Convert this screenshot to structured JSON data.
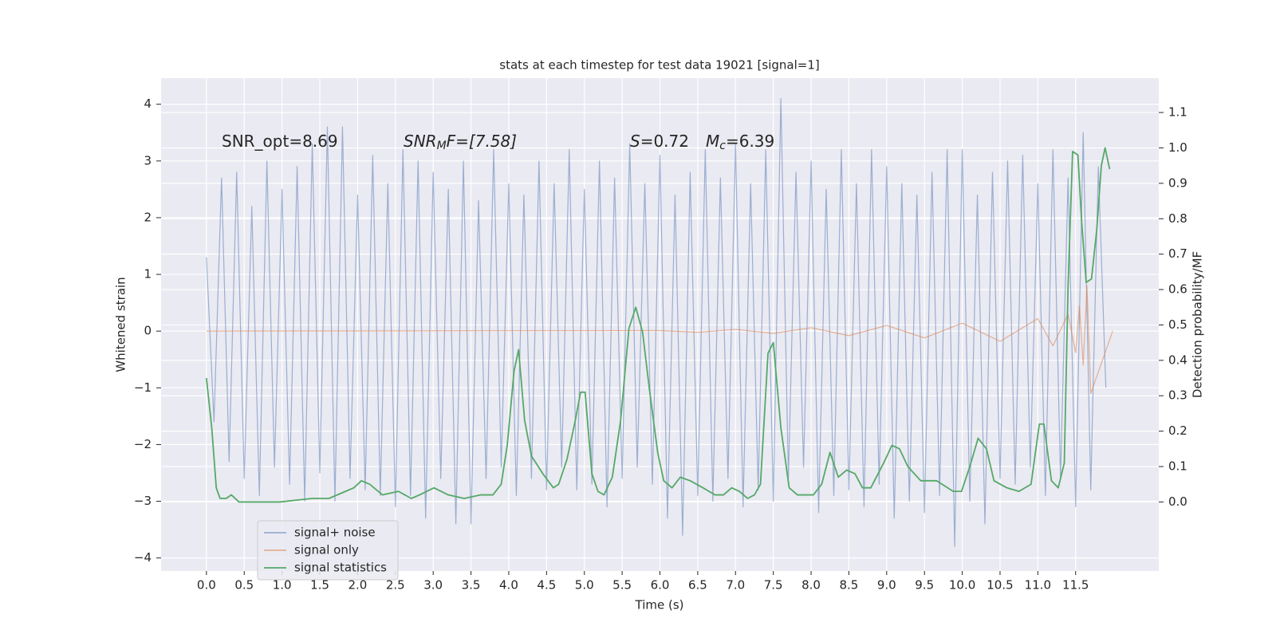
{
  "chart_data": {
    "type": "line",
    "title": "stats at each timestep for test data 19021 [signal=1]",
    "xlabel": "Time (s)",
    "ylabel": "Whitened strain",
    "y2label": "Detection probability/MF",
    "annotations": [
      {
        "base": "SNR_opt=8.69"
      },
      {
        "base": "SNR",
        "sub": "M",
        "rest": "F=[7.58]"
      },
      {
        "base": "S",
        "rest": "=0.72"
      },
      {
        "base": "M",
        "sub": "c",
        "rest": "=6.39"
      }
    ],
    "xlim": [
      -0.6,
      12.6
    ],
    "ylim": [
      -4.23,
      4.46
    ],
    "y2lim": [
      -0.195,
      1.197
    ],
    "xticks": [
      {
        "value": 0,
        "label": "0.0"
      },
      0.5,
      {
        "value": 1,
        "label": "1.0"
      },
      1.5,
      {
        "value": 2,
        "label": "2.0"
      },
      2.5,
      {
        "value": 3,
        "label": "3.0"
      },
      3.5,
      {
        "value": 4,
        "label": "4.0"
      },
      4.5,
      {
        "value": 5,
        "label": "5.0"
      },
      5.5,
      {
        "value": 6,
        "label": "6.0"
      },
      6.5,
      {
        "value": 7,
        "label": "7.0"
      },
      7.5,
      {
        "value": 8,
        "label": "8.0"
      },
      8.5,
      {
        "value": 9,
        "label": "9.0"
      },
      9.5,
      {
        "value": 10,
        "label": "10.0"
      },
      10.5,
      {
        "value": 11,
        "label": "11.0"
      },
      11.5
    ],
    "yticks": [
      {
        "value": -4,
        "label": "−4"
      },
      {
        "value": -3,
        "label": "−3"
      },
      {
        "value": -2,
        "label": "−2"
      },
      {
        "value": -1,
        "label": "−1"
      },
      0,
      1,
      2,
      3,
      4
    ],
    "y2ticks": [
      {
        "value": 0,
        "label": "0.0"
      },
      0.1,
      0.2,
      0.3,
      0.4,
      0.5,
      0.6,
      0.7,
      0.8,
      0.9,
      {
        "value": 1,
        "label": "1.0"
      },
      1.1
    ],
    "grid": true,
    "legend": "lower left",
    "series": [
      {
        "name": "signal+ noise",
        "color": "#4c72b0",
        "alpha": 0.5,
        "x": [
          0.0,
          0.1,
          0.2,
          0.3,
          0.4,
          0.5,
          0.6,
          0.7,
          0.8,
          0.9,
          1.0,
          1.1,
          1.2,
          1.3,
          1.4,
          1.5,
          1.6,
          1.7,
          1.8,
          1.9,
          2.0,
          2.1,
          2.2,
          2.3,
          2.4,
          2.5,
          2.6,
          2.7,
          2.8,
          2.9,
          3.0,
          3.1,
          3.2,
          3.3,
          3.4,
          3.5,
          3.6,
          3.7,
          3.8,
          3.9,
          4.0,
          4.1,
          4.2,
          4.3,
          4.4,
          4.5,
          4.6,
          4.7,
          4.8,
          4.9,
          5.0,
          5.1,
          5.2,
          5.3,
          5.4,
          5.5,
          5.6,
          5.7,
          5.8,
          5.9,
          6.0,
          6.1,
          6.2,
          6.3,
          6.4,
          6.5,
          6.6,
          6.7,
          6.8,
          6.9,
          7.0,
          7.1,
          7.2,
          7.3,
          7.4,
          7.5,
          7.6,
          7.7,
          7.8,
          7.9,
          8.0,
          8.1,
          8.2,
          8.3,
          8.4,
          8.5,
          8.6,
          8.7,
          8.8,
          8.9,
          9.0,
          9.1,
          9.2,
          9.3,
          9.4,
          9.5,
          9.6,
          9.7,
          9.8,
          9.9,
          10.0,
          10.1,
          10.2,
          10.3,
          10.4,
          10.5,
          10.6,
          10.7,
          10.8,
          10.9,
          11.0,
          11.1,
          11.2,
          11.3,
          11.4,
          11.5,
          11.6,
          11.7,
          11.8,
          11.9
        ],
        "values": [
          1.3,
          -1.6,
          2.7,
          -2.3,
          2.8,
          -2.6,
          2.2,
          -2.9,
          3.0,
          -2.4,
          2.5,
          -2.7,
          2.9,
          -3.0,
          3.3,
          -2.5,
          3.6,
          -3.0,
          3.6,
          -2.6,
          2.4,
          -2.8,
          3.1,
          -2.9,
          2.6,
          -3.1,
          3.2,
          -2.9,
          3.0,
          -3.3,
          2.8,
          -2.6,
          2.5,
          -3.4,
          3.0,
          -3.4,
          2.3,
          -2.6,
          3.2,
          -2.4,
          2.6,
          -2.9,
          2.4,
          -2.6,
          3.0,
          -2.8,
          2.6,
          -2.4,
          3.2,
          -2.8,
          2.5,
          -2.7,
          3.0,
          -3.1,
          2.7,
          -2.6,
          3.3,
          -2.4,
          2.6,
          -2.7,
          3.1,
          -3.3,
          2.4,
          -3.6,
          2.8,
          -2.9,
          3.2,
          -3.0,
          2.7,
          -2.6,
          3.3,
          -3.1,
          2.6,
          -2.8,
          3.2,
          -3.0,
          4.1,
          -2.6,
          2.8,
          -2.4,
          3.0,
          -3.2,
          2.5,
          -2.9,
          3.2,
          -2.8,
          2.6,
          -3.1,
          3.2,
          -2.7,
          2.9,
          -3.3,
          2.6,
          -3.0,
          2.4,
          -3.2,
          2.8,
          -2.9,
          3.2,
          -3.8,
          3.2,
          -3.0,
          2.4,
          -3.4,
          2.8,
          -2.6,
          3.0,
          -2.7,
          3.1,
          -2.4,
          2.6,
          -2.9,
          3.2,
          -2.6,
          2.7,
          -3.1,
          3.5,
          -2.8,
          2.9,
          -1.0
        ]
      },
      {
        "name": "signal only",
        "color": "#dd8452",
        "alpha": 0.6,
        "x": [
          0.0,
          6.0,
          6.5,
          7.0,
          7.5,
          8.0,
          8.5,
          9.0,
          9.5,
          10.0,
          10.5,
          11.0,
          11.2,
          11.4,
          11.5,
          11.55,
          11.6,
          11.65,
          11.7,
          11.99
        ],
        "values": [
          0.0,
          0.01,
          -0.02,
          0.03,
          -0.04,
          0.06,
          -0.08,
          0.1,
          -0.12,
          0.14,
          -0.18,
          0.22,
          -0.26,
          0.3,
          -0.38,
          0.45,
          -0.6,
          0.8,
          -1.1,
          0.0
        ]
      },
      {
        "name": "signal statistics",
        "color": "#55a868",
        "alpha": 1,
        "axis": "y2",
        "x": [
          0.0,
          0.07,
          0.13,
          0.18,
          0.26,
          0.33,
          0.43,
          0.64,
          0.97,
          1.4,
          1.62,
          1.84,
          1.95,
          2.05,
          2.16,
          2.33,
          2.54,
          2.71,
          2.82,
          3.01,
          3.2,
          3.41,
          3.63,
          3.79,
          3.9,
          3.98,
          4.07,
          4.13,
          4.21,
          4.3,
          4.45,
          4.59,
          4.66,
          4.77,
          4.88,
          4.95,
          5.01,
          5.1,
          5.18,
          5.26,
          5.37,
          5.48,
          5.59,
          5.68,
          5.77,
          5.86,
          5.97,
          6.05,
          6.16,
          6.27,
          6.4,
          6.57,
          6.73,
          6.84,
          6.95,
          7.05,
          7.16,
          7.25,
          7.33,
          7.43,
          7.5,
          7.6,
          7.71,
          7.82,
          8.03,
          8.14,
          8.25,
          8.36,
          8.47,
          8.58,
          8.68,
          8.79,
          8.96,
          9.07,
          9.17,
          9.28,
          9.45,
          9.66,
          9.88,
          9.99,
          10.1,
          10.21,
          10.32,
          10.42,
          10.59,
          10.75,
          10.91,
          11.02,
          11.08,
          11.18,
          11.27,
          11.35,
          11.4,
          11.46,
          11.53,
          11.58,
          11.64,
          11.71,
          11.78,
          11.84,
          11.89,
          11.95
        ],
        "values": [
          0.35,
          0.21,
          0.04,
          0.01,
          0.01,
          0.02,
          0.0,
          0.0,
          0.0,
          0.01,
          0.01,
          0.03,
          0.04,
          0.06,
          0.05,
          0.02,
          0.03,
          0.01,
          0.02,
          0.04,
          0.02,
          0.01,
          0.02,
          0.02,
          0.05,
          0.16,
          0.37,
          0.43,
          0.23,
          0.13,
          0.08,
          0.04,
          0.05,
          0.12,
          0.23,
          0.31,
          0.31,
          0.08,
          0.03,
          0.02,
          0.07,
          0.23,
          0.49,
          0.55,
          0.48,
          0.32,
          0.14,
          0.06,
          0.04,
          0.07,
          0.06,
          0.04,
          0.02,
          0.02,
          0.04,
          0.03,
          0.01,
          0.02,
          0.05,
          0.42,
          0.45,
          0.21,
          0.04,
          0.02,
          0.02,
          0.05,
          0.14,
          0.07,
          0.09,
          0.08,
          0.04,
          0.04,
          0.11,
          0.16,
          0.15,
          0.1,
          0.06,
          0.06,
          0.03,
          0.03,
          0.1,
          0.18,
          0.15,
          0.06,
          0.04,
          0.03,
          0.05,
          0.22,
          0.22,
          0.06,
          0.04,
          0.11,
          0.61,
          0.99,
          0.98,
          0.79,
          0.62,
          0.63,
          0.77,
          0.95,
          1.0,
          0.94
        ]
      }
    ]
  }
}
